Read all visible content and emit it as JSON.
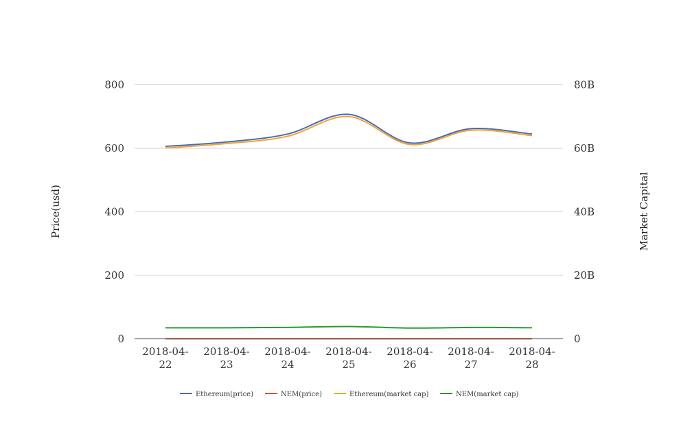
{
  "chart_data": {
    "type": "line",
    "categories": [
      [
        "2018-04-",
        "22"
      ],
      [
        "2018-04-",
        "23"
      ],
      [
        "2018-04-",
        "24"
      ],
      [
        "2018-04-",
        "25"
      ],
      [
        "2018-04-",
        "26"
      ],
      [
        "2018-04-",
        "27"
      ],
      [
        "2018-04-",
        "28"
      ]
    ],
    "left_axis": {
      "label": "Price(usd)",
      "range": [
        0,
        800
      ],
      "ticks": [
        0,
        200,
        400,
        600,
        800
      ],
      "tick_labels": [
        "0",
        "200",
        "400",
        "600",
        "800"
      ]
    },
    "right_axis": {
      "label": "Market Capital",
      "range": [
        0,
        80000000000
      ],
      "ticks": [
        0,
        20000000000,
        40000000000,
        60000000000,
        80000000000
      ],
      "tick_labels": [
        "0",
        "20B",
        "40B",
        "60B",
        "80B"
      ]
    },
    "grid": true,
    "legend_position": "bottom",
    "series": [
      {
        "name": "Ethereum(price)",
        "axis": "left",
        "color": "#4a6bb5",
        "values": [
          606,
          620,
          645,
          707,
          617,
          662,
          645
        ]
      },
      {
        "name": "NEM(price)",
        "axis": "left",
        "color": "#d9531e",
        "values": [
          0.36,
          0.37,
          0.38,
          0.4,
          0.36,
          0.37,
          0.37
        ]
      },
      {
        "name": "Ethereum(market cap)",
        "axis": "right",
        "color": "#f0a630",
        "values": [
          60100000000,
          61500000000,
          63800000000,
          70000000000,
          61200000000,
          65700000000,
          64000000000
        ]
      },
      {
        "name": "NEM(market cap)",
        "axis": "right",
        "color": "#2c9a2c",
        "values": [
          3500000000,
          3500000000,
          3600000000,
          3900000000,
          3400000000,
          3600000000,
          3500000000
        ]
      }
    ]
  }
}
